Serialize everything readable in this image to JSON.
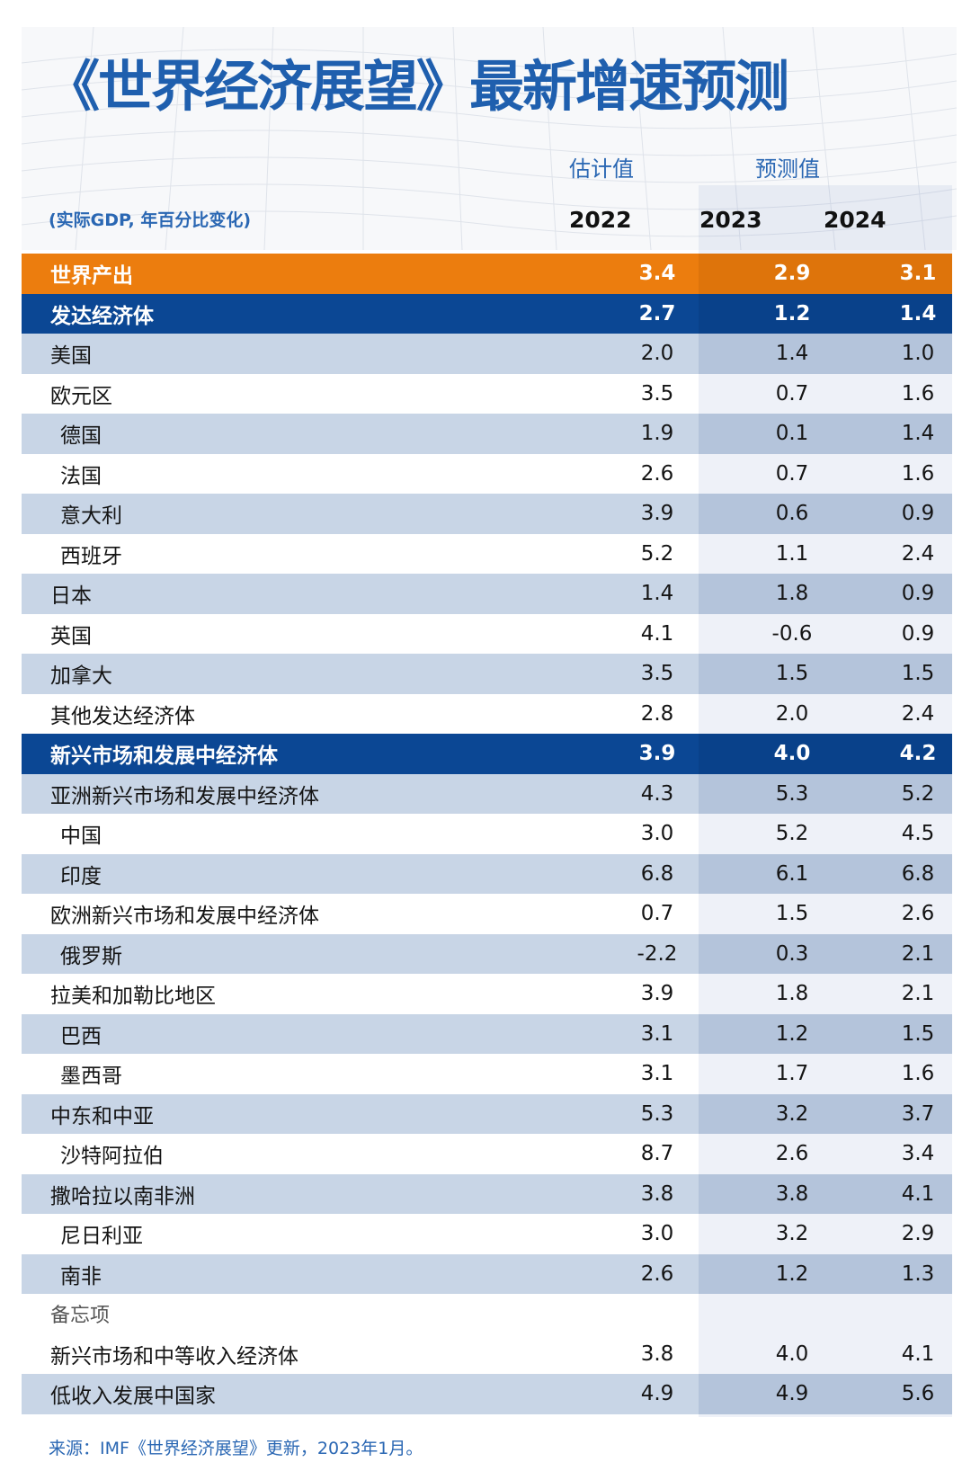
{
  "title": "《世界经济展望》最新增速预测",
  "unit_note": "(实际GDP, 年百分比变化)",
  "column_groups": {
    "estimate": "估计值",
    "forecast": "预测值"
  },
  "years": [
    "2022",
    "2023",
    "2024"
  ],
  "source": "来源：IMF《世界经济展望》更新，2023年1月。",
  "colors": {
    "title": "#1f5fae",
    "world_row": "#ec7d0e",
    "group_row": "#0b4794",
    "shaded_row": "#c8d5e6"
  },
  "chart_data": {
    "type": "table",
    "columns": [
      "2022",
      "2023",
      "2024"
    ],
    "rows": [
      {
        "label": "世界产出",
        "values": [
          "3.4",
          "2.9",
          "3.1"
        ],
        "style": "orange",
        "indent": false
      },
      {
        "label": "发达经济体",
        "values": [
          "2.7",
          "1.2",
          "1.4"
        ],
        "style": "navy",
        "indent": false
      },
      {
        "label": "美国",
        "values": [
          "2.0",
          "1.4",
          "1.0"
        ],
        "style": "shaded",
        "indent": false
      },
      {
        "label": "欧元区",
        "values": [
          "3.5",
          "0.7",
          "1.6"
        ],
        "style": "light",
        "indent": false
      },
      {
        "label": "德国",
        "values": [
          "1.9",
          "0.1",
          "1.4"
        ],
        "style": "shaded",
        "indent": true
      },
      {
        "label": "法国",
        "values": [
          "2.6",
          "0.7",
          "1.6"
        ],
        "style": "light",
        "indent": true
      },
      {
        "label": "意大利",
        "values": [
          "3.9",
          "0.6",
          "0.9"
        ],
        "style": "shaded",
        "indent": true
      },
      {
        "label": "西班牙",
        "values": [
          "5.2",
          "1.1",
          "2.4"
        ],
        "style": "light",
        "indent": true
      },
      {
        "label": "日本",
        "values": [
          "1.4",
          "1.8",
          "0.9"
        ],
        "style": "shaded",
        "indent": false
      },
      {
        "label": "英国",
        "values": [
          "4.1",
          "-0.6",
          "0.9"
        ],
        "style": "light",
        "indent": false
      },
      {
        "label": "加拿大",
        "values": [
          "3.5",
          "1.5",
          "1.5"
        ],
        "style": "shaded",
        "indent": false
      },
      {
        "label": "其他发达经济体",
        "values": [
          "2.8",
          "2.0",
          "2.4"
        ],
        "style": "light",
        "indent": false
      },
      {
        "label": "新兴市场和发展中经济体",
        "values": [
          "3.9",
          "4.0",
          "4.2"
        ],
        "style": "navy",
        "indent": false
      },
      {
        "label": "亚洲新兴市场和发展中经济体",
        "values": [
          "4.3",
          "5.3",
          "5.2"
        ],
        "style": "shaded",
        "indent": false
      },
      {
        "label": "中国",
        "values": [
          "3.0",
          "5.2",
          "4.5"
        ],
        "style": "light",
        "indent": true
      },
      {
        "label": "印度",
        "values": [
          "6.8",
          "6.1",
          "6.8"
        ],
        "style": "shaded",
        "indent": true
      },
      {
        "label": "欧洲新兴市场和发展中经济体",
        "values": [
          "0.7",
          "1.5",
          "2.6"
        ],
        "style": "light",
        "indent": false
      },
      {
        "label": "俄罗斯",
        "values": [
          "-2.2",
          "0.3",
          "2.1"
        ],
        "style": "shaded",
        "indent": true
      },
      {
        "label": "拉美和加勒比地区",
        "values": [
          "3.9",
          "1.8",
          "2.1"
        ],
        "style": "light",
        "indent": false
      },
      {
        "label": "巴西",
        "values": [
          "3.1",
          "1.2",
          "1.5"
        ],
        "style": "shaded",
        "indent": true
      },
      {
        "label": "墨西哥",
        "values": [
          "3.1",
          "1.7",
          "1.6"
        ],
        "style": "light",
        "indent": true
      },
      {
        "label": "中东和中亚",
        "values": [
          "5.3",
          "3.2",
          "3.7"
        ],
        "style": "shaded",
        "indent": false
      },
      {
        "label": "沙特阿拉伯",
        "values": [
          "8.7",
          "2.6",
          "3.4"
        ],
        "style": "light",
        "indent": true
      },
      {
        "label": "撒哈拉以南非洲",
        "values": [
          "3.8",
          "3.8",
          "4.1"
        ],
        "style": "shaded",
        "indent": false
      },
      {
        "label": "尼日利亚",
        "values": [
          "3.0",
          "3.2",
          "2.9"
        ],
        "style": "light",
        "indent": true
      },
      {
        "label": "南非",
        "values": [
          "2.6",
          "1.2",
          "1.3"
        ],
        "style": "shaded",
        "indent": true
      },
      {
        "label": "备忘项",
        "values": [
          "",
          "",
          ""
        ],
        "style": "memo-head",
        "indent": false
      },
      {
        "label": "新兴市场和中等收入经济体",
        "values": [
          "3.8",
          "4.0",
          "4.1"
        ],
        "style": "light",
        "indent": false
      },
      {
        "label": "低收入发展中国家",
        "values": [
          "4.9",
          "4.9",
          "5.6"
        ],
        "style": "shaded",
        "indent": false
      }
    ]
  }
}
